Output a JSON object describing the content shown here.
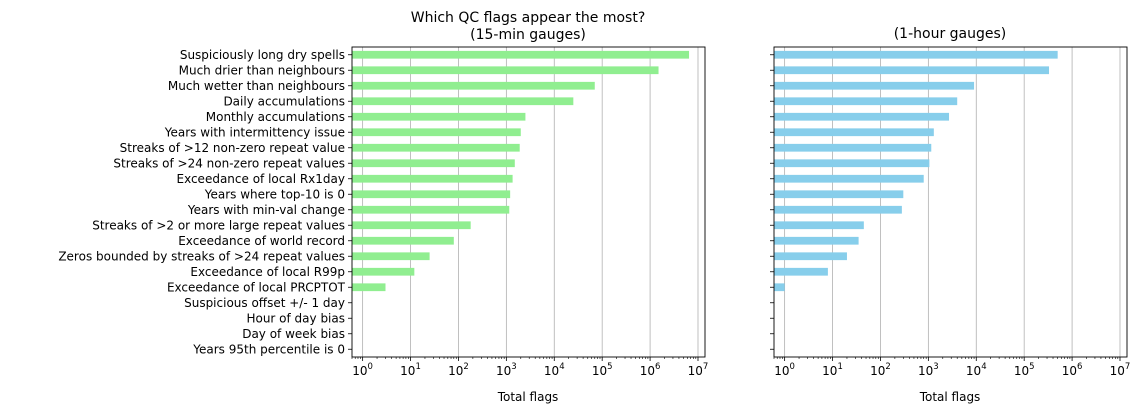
{
  "chart_data": [
    {
      "type": "bar",
      "orientation": "horizontal",
      "title": "Which QC flags appear the most?",
      "subtitle": "(15-min gauges)",
      "xlabel": "Total flags",
      "ylabel": "",
      "xscale": "log",
      "xlim": [
        0.6,
        14000000
      ],
      "xticks": [
        "10^0",
        "10^1",
        "10^2",
        "10^3",
        "10^4",
        "10^5",
        "10^6",
        "10^7"
      ],
      "grid": "x-major",
      "color": "#90ee90",
      "categories": [
        "Suspiciously long dry spells",
        "Much drier than neighbours",
        "Much wetter than neighbours",
        "Daily accumulations",
        "Monthly accumulations",
        "Years with intermittency issue",
        "Streaks of >12 non-zero repeat value",
        "Streaks of >24 non-zero repeat values",
        "Exceedance of local Rx1day",
        "Years where top-10 is 0",
        "Years with min-val change",
        "Streaks of >2 or more large repeat values",
        "Exceedance of world record",
        "Zeros bounded by streaks of >24 repeat values",
        "Exceedance of local R99p",
        "Exceedance of local PRCPTOT",
        "Suspicious offset +/- 1 day",
        "Hour of day bias",
        "Day of week bias",
        "Years 95th percentile is 0"
      ],
      "values": [
        6500000,
        1500000,
        70000,
        25000,
        2500,
        2000,
        1900,
        1500,
        1350,
        1200,
        1150,
        180,
        80,
        25,
        12,
        3,
        0,
        0,
        0,
        0
      ]
    },
    {
      "type": "bar",
      "orientation": "horizontal",
      "title": "(1-hour gauges)",
      "xlabel": "Total flags",
      "ylabel": "",
      "xscale": "log",
      "xlim": [
        0.6,
        14000000
      ],
      "xticks": [
        "10^0",
        "10^1",
        "10^2",
        "10^3",
        "10^4",
        "10^5",
        "10^6",
        "10^7"
      ],
      "grid": "x-major",
      "color": "#87ceeb",
      "shared_y": true,
      "values": [
        500000,
        330000,
        9000,
        4000,
        2700,
        1300,
        1150,
        1050,
        800,
        300,
        280,
        45,
        35,
        20,
        8,
        1,
        0,
        0,
        0,
        0
      ]
    }
  ]
}
